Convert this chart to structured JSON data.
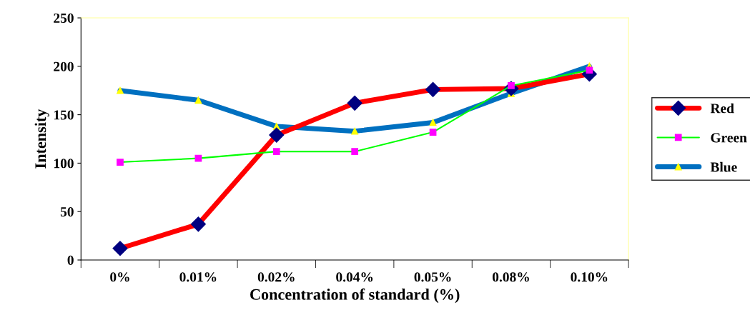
{
  "chart_data": {
    "type": "line",
    "xlabel": "Concentration of standard (%)",
    "ylabel": "Intensity",
    "categories": [
      "0%",
      "0.01%",
      "0.02%",
      "0.04%",
      "0.05%",
      "0.08%",
      "0.10%"
    ],
    "ylim": [
      0,
      250
    ],
    "yticks": [
      0,
      50,
      100,
      150,
      200,
      250
    ],
    "grid": false,
    "legend": "right",
    "series": [
      {
        "name": "Red",
        "color": "#ff0000",
        "marker": "diamond",
        "values": [
          12,
          37,
          129,
          162,
          176,
          177,
          192
        ]
      },
      {
        "name": "Green",
        "color": "#00ff00",
        "marker": "square",
        "values": [
          101,
          105,
          112,
          112,
          132,
          180,
          196
        ]
      },
      {
        "name": "Blue",
        "color": "#0070c0",
        "marker": "triangle",
        "values": [
          175,
          165,
          138,
          133,
          142,
          172,
          200
        ]
      }
    ]
  }
}
